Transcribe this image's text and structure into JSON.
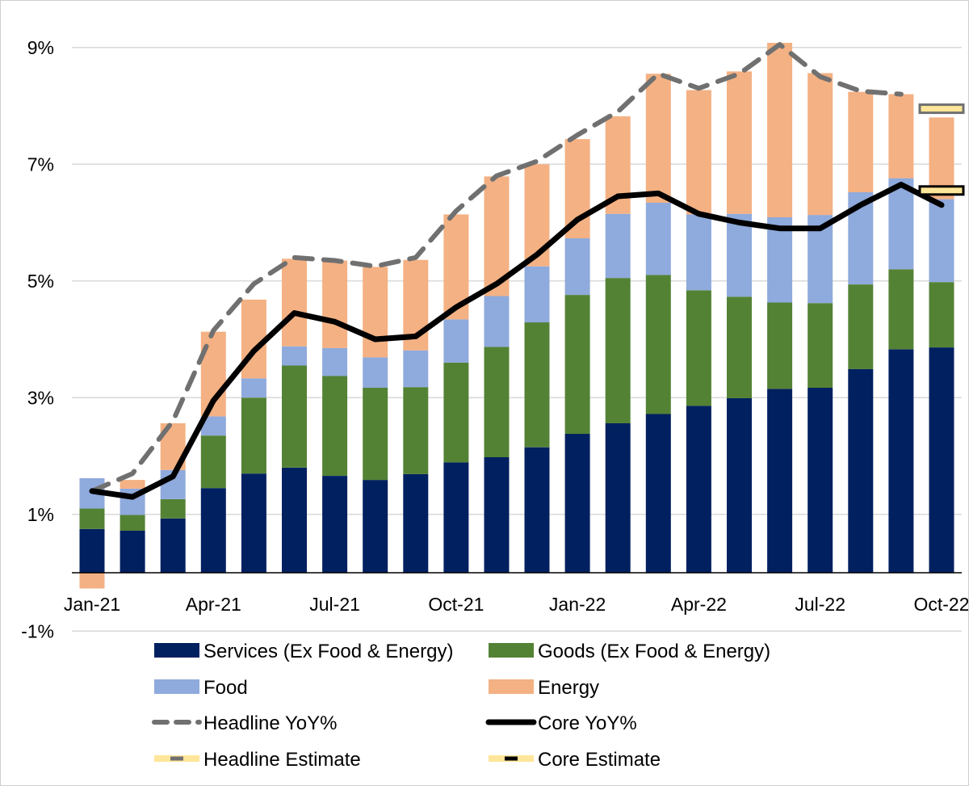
{
  "chart_data": {
    "type": "bar",
    "stacked": true,
    "title": "",
    "xlabel": "",
    "ylabel": "",
    "ylim": [
      -1,
      10
    ],
    "y_ticks": [
      -1,
      1,
      3,
      5,
      7,
      9
    ],
    "y_tick_labels": [
      "-1%",
      "1%",
      "3%",
      "5%",
      "7%",
      "9%"
    ],
    "grid": "horizontal",
    "legend_position": "bottom",
    "categories": [
      "Jan-21",
      "Feb-21",
      "Mar-21",
      "Apr-21",
      "May-21",
      "Jun-21",
      "Jul-21",
      "Aug-21",
      "Sep-21",
      "Oct-21",
      "Nov-21",
      "Dec-21",
      "Jan-22",
      "Feb-22",
      "Mar-22",
      "Apr-22",
      "May-22",
      "Jun-22",
      "Jul-22",
      "Aug-22",
      "Sep-22",
      "Oct-22"
    ],
    "x_tick_labels": [
      "Jan-21",
      "Apr-21",
      "Jul-21",
      "Oct-21",
      "Jan-22",
      "Apr-22",
      "Jul-22",
      "Oct-22"
    ],
    "series": [
      {
        "name": "Services (Ex Food & Energy)",
        "kind": "bar",
        "color": "#002060",
        "values": [
          0.75,
          0.72,
          0.93,
          1.45,
          1.7,
          1.8,
          1.66,
          1.59,
          1.69,
          1.89,
          1.98,
          2.15,
          2.38,
          2.56,
          2.72,
          2.86,
          2.99,
          3.15,
          3.17,
          3.49,
          3.83,
          3.86
        ]
      },
      {
        "name": "Goods (Ex Food & Energy)",
        "kind": "bar",
        "color": "#548235",
        "values": [
          0.35,
          0.27,
          0.33,
          0.9,
          1.3,
          1.75,
          1.71,
          1.58,
          1.49,
          1.71,
          1.89,
          2.14,
          2.38,
          2.49,
          2.38,
          1.98,
          1.74,
          1.48,
          1.45,
          1.45,
          1.37,
          1.12
        ]
      },
      {
        "name": "Food",
        "kind": "bar",
        "color": "#8FAADC",
        "values": [
          0.52,
          0.45,
          0.5,
          0.33,
          0.33,
          0.33,
          0.48,
          0.52,
          0.63,
          0.74,
          0.87,
          0.96,
          0.97,
          1.1,
          1.24,
          1.3,
          1.42,
          1.46,
          1.51,
          1.58,
          1.56,
          1.42
        ]
      },
      {
        "name": "Energy",
        "kind": "bar",
        "color": "#F4B183",
        "values": [
          -0.27,
          0.15,
          0.8,
          1.45,
          1.35,
          1.5,
          1.5,
          1.55,
          1.55,
          1.8,
          2.05,
          1.75,
          1.7,
          1.67,
          2.21,
          2.13,
          2.44,
          2.99,
          2.43,
          1.72,
          1.44,
          1.4
        ]
      },
      {
        "name": "Headline YoY%",
        "kind": "line",
        "dashed": true,
        "color": "#707070",
        "values": [
          1.4,
          1.7,
          2.6,
          4.15,
          4.95,
          5.4,
          5.35,
          5.25,
          5.4,
          6.2,
          6.8,
          7.05,
          7.5,
          7.9,
          8.55,
          8.3,
          8.55,
          9.05,
          8.5,
          8.25,
          8.2,
          null
        ]
      },
      {
        "name": "Core YoY%",
        "kind": "line",
        "color": "#000000",
        "values": [
          1.4,
          1.3,
          1.65,
          2.95,
          3.8,
          4.45,
          4.3,
          4.0,
          4.05,
          4.55,
          4.95,
          5.45,
          6.05,
          6.45,
          6.5,
          6.15,
          6.0,
          5.9,
          5.9,
          6.3,
          6.65,
          6.3
        ]
      },
      {
        "name": "Headline Estimate",
        "kind": "marker",
        "color": "#FFE699",
        "border": "#707070",
        "values": [
          null,
          null,
          null,
          null,
          null,
          null,
          null,
          null,
          null,
          null,
          null,
          null,
          null,
          null,
          null,
          null,
          null,
          null,
          null,
          null,
          null,
          7.95
        ]
      },
      {
        "name": "Core Estimate",
        "kind": "marker",
        "color": "#FFE699",
        "border": "#000000",
        "values": [
          null,
          null,
          null,
          null,
          null,
          null,
          null,
          null,
          null,
          null,
          null,
          null,
          null,
          null,
          null,
          null,
          null,
          null,
          null,
          null,
          null,
          6.55
        ]
      }
    ]
  }
}
